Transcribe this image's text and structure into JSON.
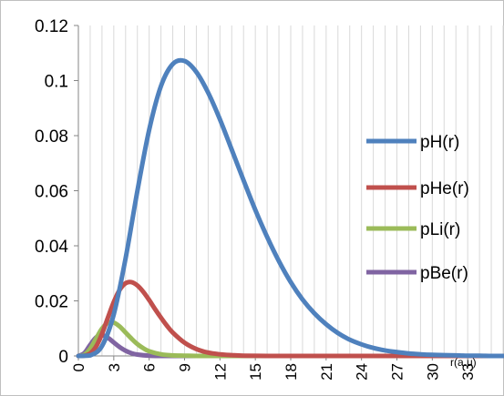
{
  "chart_data": {
    "type": "line",
    "title": "",
    "xlabel": "r(a.u)",
    "ylabel": "",
    "xlim": [
      0,
      36
    ],
    "ylim": [
      0,
      0.12
    ],
    "grid": "vertical",
    "legend_position": "right",
    "y_ticks": [
      {
        "value": 0,
        "label": "0"
      },
      {
        "value": 0.02,
        "label": "0.02"
      },
      {
        "value": 0.04,
        "label": "0.04"
      },
      {
        "value": 0.06,
        "label": "0.06"
      },
      {
        "value": 0.08,
        "label": "0.08"
      },
      {
        "value": 0.1,
        "label": "0.1"
      },
      {
        "value": 0.12,
        "label": "0.12"
      }
    ],
    "x_ticks": [
      {
        "value": 0,
        "label": "0"
      },
      {
        "value": 3,
        "label": "3"
      },
      {
        "value": 6,
        "label": "6"
      },
      {
        "value": 9,
        "label": "9"
      },
      {
        "value": 12,
        "label": "12"
      },
      {
        "value": 15,
        "label": "15"
      },
      {
        "value": 18,
        "label": "18"
      },
      {
        "value": 21,
        "label": "21"
      },
      {
        "value": 24,
        "label": "24"
      },
      {
        "value": 27,
        "label": "27"
      },
      {
        "value": 30,
        "label": "30"
      },
      {
        "value": 33,
        "label": "33"
      }
    ],
    "series": [
      {
        "name": "pH(r)",
        "color": "#4f81bd",
        "x": [
          0,
          1,
          2,
          3,
          4,
          5,
          6,
          7,
          8,
          9,
          10,
          11,
          12,
          13,
          14,
          15,
          16,
          17,
          18,
          19,
          20,
          21,
          22,
          23,
          24,
          25,
          26,
          27,
          28,
          29,
          30,
          31,
          32,
          33,
          34,
          35,
          36
        ],
        "y": [
          0,
          0.0002,
          0.0036,
          0.0151,
          0.0354,
          0.0599,
          0.0821,
          0.098,
          0.106,
          0.1071,
          0.1031,
          0.0956,
          0.0859,
          0.0749,
          0.0638,
          0.053,
          0.0432,
          0.0344,
          0.0268,
          0.0205,
          0.0155,
          0.0115,
          0.0083,
          0.0059,
          0.0042,
          0.0029,
          0.002,
          0.0014,
          0.0009,
          0.0006,
          0.0004,
          0.0003,
          0.0002,
          0.0001,
          0.0001,
          0,
          0
        ]
      },
      {
        "name": "pHe(r)",
        "color": "#c0504d",
        "x": [
          0,
          0.5,
          1,
          1.5,
          2,
          2.5,
          3,
          3.5,
          4,
          4.5,
          5,
          5.5,
          6,
          6.5,
          7,
          7.5,
          8,
          9,
          10,
          11,
          12,
          13,
          14,
          16,
          18,
          20,
          25,
          30,
          36
        ],
        "y": [
          0,
          0.0001,
          0.0009,
          0.0034,
          0.008,
          0.0139,
          0.0196,
          0.024,
          0.0264,
          0.0268,
          0.0256,
          0.0233,
          0.0203,
          0.017,
          0.0139,
          0.011,
          0.0085,
          0.0048,
          0.0025,
          0.0012,
          0.0006,
          0.0003,
          0.0001,
          0,
          0,
          0,
          0,
          0,
          0
        ]
      },
      {
        "name": "pLi(r)",
        "color": "#9bbb59",
        "x": [
          0,
          0.5,
          1,
          1.5,
          2,
          2.5,
          3,
          3.5,
          4,
          4.5,
          5,
          5.5,
          6,
          7,
          8,
          9,
          10,
          12,
          15,
          20,
          36
        ],
        "y": [
          0,
          0.0004,
          0.0026,
          0.0063,
          0.0099,
          0.012,
          0.0121,
          0.0107,
          0.0085,
          0.0063,
          0.0043,
          0.0028,
          0.0017,
          0.0006,
          0.0002,
          0.0001,
          0,
          0,
          0,
          0,
          0
        ]
      },
      {
        "name": "pBe(r)",
        "color": "#8064a2",
        "x": [
          0,
          0.5,
          1,
          1.5,
          2,
          2.5,
          3,
          3.5,
          4,
          4.5,
          5,
          6,
          7,
          8,
          10,
          15,
          20,
          36
        ],
        "y": [
          0,
          0.001,
          0.004,
          0.0067,
          0.0075,
          0.0066,
          0.0049,
          0.0032,
          0.0019,
          0.001,
          0.0005,
          0.0001,
          0,
          0,
          0,
          0,
          0,
          0
        ]
      }
    ]
  }
}
